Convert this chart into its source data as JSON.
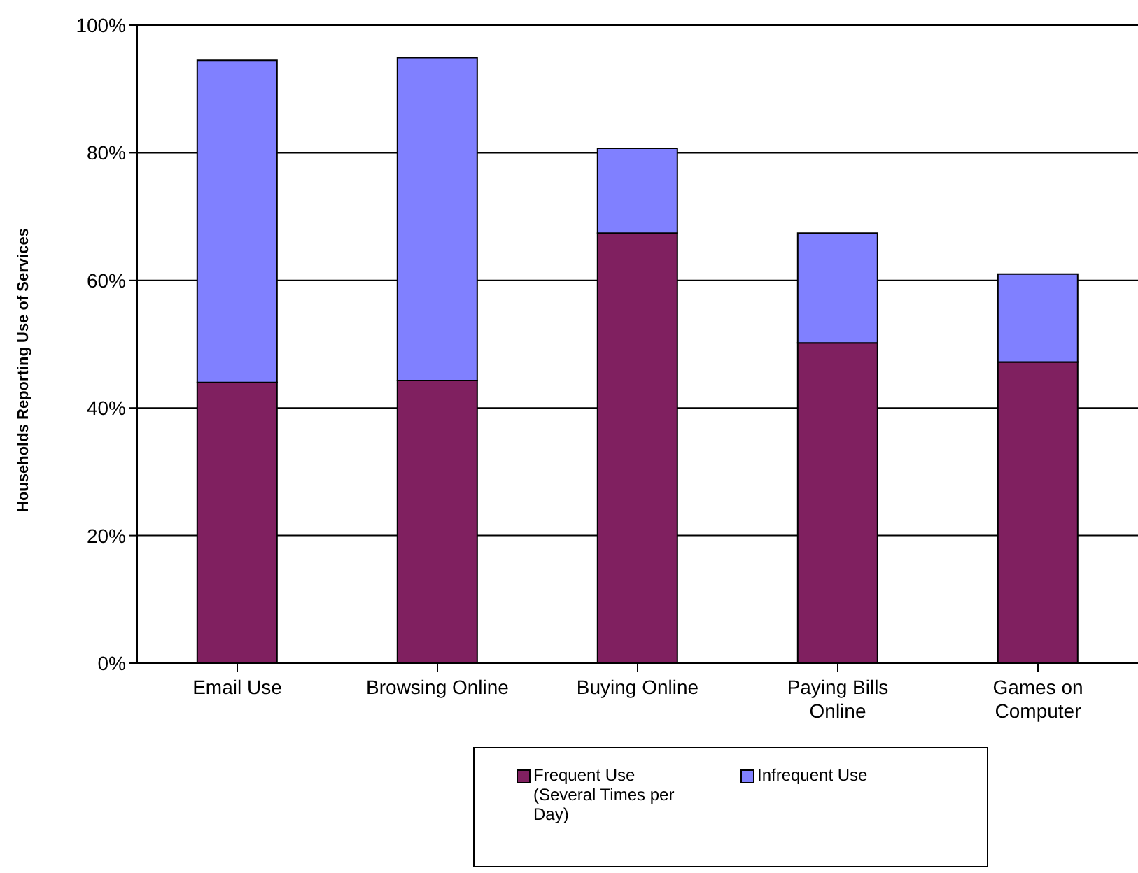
{
  "chart_data": {
    "type": "bar",
    "stacked": true,
    "ylabel": "Households Reporting Use of Services",
    "categories": [
      "Email Use",
      "Browsing Online",
      "Buying Online",
      "Paying Bills Online",
      "Games on Computer"
    ],
    "series": [
      {
        "name": "Frequent Use (Several Times per Day)",
        "color": "#802060",
        "values": [
          44,
          44.3,
          67.4,
          50.2,
          47.2
        ]
      },
      {
        "name": "Infrequent Use",
        "color": "#8080ff",
        "values": [
          50.5,
          50.6,
          13.3,
          17.2,
          13.8
        ]
      }
    ],
    "ylim": [
      0,
      100
    ],
    "yticks": [
      {
        "value": 0,
        "label": "0%"
      },
      {
        "value": 20,
        "label": "20%"
      },
      {
        "value": 40,
        "label": "40%"
      },
      {
        "value": 60,
        "label": "60%"
      },
      {
        "value": 80,
        "label": "80%"
      },
      {
        "value": 100,
        "label": "100%"
      }
    ],
    "grid": "y",
    "legend": "bottom"
  }
}
